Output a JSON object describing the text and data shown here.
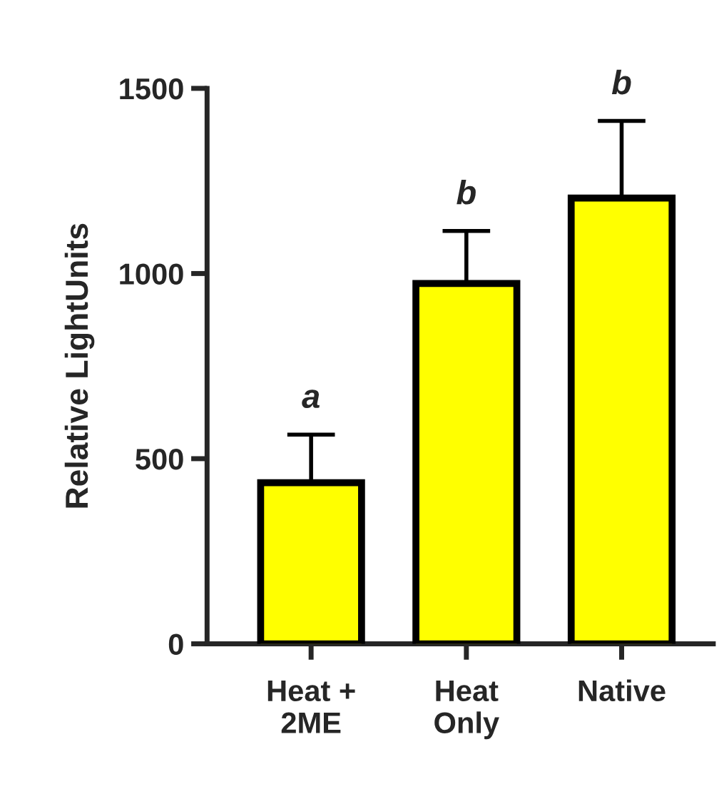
{
  "chart_data": {
    "type": "bar",
    "ylabel": "Relative LightUnits",
    "categories": [
      "Heat +\n2ME",
      "Heat\nOnly",
      "Native"
    ],
    "values": [
      435,
      973,
      1204
    ],
    "color": "#ffff00",
    "errors": [
      [
        435,
        565
      ],
      [
        973,
        1115
      ],
      [
        1204,
        1412
      ]
    ],
    "ylim": [
      0,
      1500
    ],
    "yticks": [
      0,
      500,
      1000,
      1500
    ],
    "grid": false,
    "legend": false,
    "annotations": [
      {
        "text": "a",
        "x": "Heat +\n2ME",
        "y": 565
      },
      {
        "text": "b",
        "x": "Heat\nOnly",
        "y": 1115
      },
      {
        "text": "b",
        "x": "Native",
        "y": 1412
      }
    ]
  }
}
